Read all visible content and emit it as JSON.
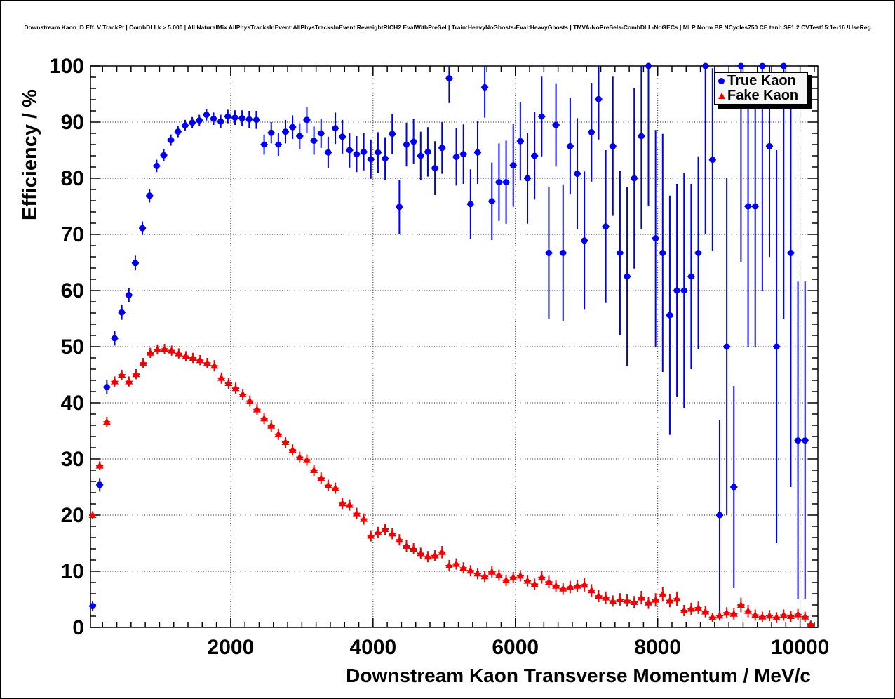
{
  "title": "Downstream Kaon ID Eff. V TrackPt | CombDLLk > 5.000 | All NaturalMix AllPhysTracksInEvent:AllPhysTracksInEvent ReweightRICH2 EvalWithPreSel | Train:HeavyNoGhosts-Eval:HeavyGhosts | TMVA-NoPreSels-CombDLL-NoGECs | MLP Norm BP NCycles750 CE tanh SF1.2 CVTest15:1e-16 !UseReg",
  "colors": {
    "true_kaon": "#0000f0",
    "fake_kaon": "#f00000",
    "axis": "#000000",
    "grid": "#000000",
    "legend_bg": "#f6f6f6",
    "canvas_bg": "#ffffff"
  },
  "legend": {
    "entries": [
      {
        "label": "True Kaon",
        "marker": "circle",
        "color": "#0000f0"
      },
      {
        "label": "Fake Kaon",
        "marker": "triangle-up",
        "color": "#f00000"
      }
    ]
  },
  "chart_data": {
    "type": "scatter",
    "title": "Downstream Kaon ID Eff. V TrackPt",
    "xlabel": "Downstream Kaon Transverse Momentum / MeV/c",
    "ylabel": "Efficiency / %",
    "xlim": [
      30,
      10250
    ],
    "ylim": [
      0,
      100
    ],
    "x_ticks": [
      2000,
      4000,
      6000,
      8000,
      10000
    ],
    "y_ticks": [
      0,
      10,
      20,
      30,
      40,
      50,
      60,
      70,
      80,
      90,
      100
    ],
    "x_minor_step": 200,
    "y_minor_step": 2,
    "grid": true,
    "bin_half_width": 50,
    "series": [
      {
        "name": "True Kaon",
        "marker": "circle",
        "color": "#0000f0",
        "point_format": [
          "pt",
          "eff",
          "err_lo_abs",
          "err_hi_abs"
        ],
        "points": [
          [
            60,
            3.8,
            3.0,
            4.6
          ],
          [
            160,
            25.4,
            24.2,
            26.6
          ],
          [
            260,
            42.8,
            41.5,
            44.1
          ],
          [
            370,
            51.5,
            50.2,
            52.8
          ],
          [
            470,
            56.1,
            54.8,
            57.4
          ],
          [
            570,
            59.2,
            57.9,
            60.5
          ],
          [
            660,
            64.9,
            63.6,
            66.2
          ],
          [
            760,
            71.1,
            69.9,
            72.3
          ],
          [
            860,
            76.9,
            75.7,
            78.1
          ],
          [
            960,
            82.2,
            81.1,
            83.3
          ],
          [
            1060,
            84.1,
            83.0,
            85.2
          ],
          [
            1160,
            86.8,
            85.8,
            87.8
          ],
          [
            1260,
            88.3,
            87.3,
            89.3
          ],
          [
            1360,
            89.4,
            88.4,
            90.4
          ],
          [
            1460,
            89.9,
            88.9,
            90.9
          ],
          [
            1560,
            90.3,
            89.3,
            91.3
          ],
          [
            1660,
            91.3,
            90.3,
            92.3
          ],
          [
            1760,
            90.6,
            89.5,
            91.7
          ],
          [
            1860,
            90.1,
            88.9,
            91.3
          ],
          [
            1960,
            91.0,
            89.8,
            92.2
          ],
          [
            2060,
            90.8,
            89.5,
            92.1
          ],
          [
            2160,
            90.7,
            89.3,
            92.1
          ],
          [
            2260,
            90.5,
            89.0,
            92.0
          ],
          [
            2360,
            90.4,
            88.8,
            92.0
          ],
          [
            2470,
            86.0,
            84.2,
            87.8
          ],
          [
            2570,
            88.1,
            86.2,
            90.0
          ],
          [
            2670,
            86.0,
            84.0,
            88.0
          ],
          [
            2770,
            88.3,
            86.2,
            90.4
          ],
          [
            2870,
            89.1,
            87.0,
            91.2
          ],
          [
            2970,
            87.5,
            85.2,
            89.8
          ],
          [
            3070,
            90.4,
            88.1,
            92.7
          ],
          [
            3170,
            86.7,
            84.2,
            89.2
          ],
          [
            3270,
            88.0,
            85.4,
            90.6
          ],
          [
            3370,
            84.6,
            81.8,
            87.4
          ],
          [
            3470,
            88.9,
            86.1,
            91.7
          ],
          [
            3570,
            87.4,
            84.4,
            90.4
          ],
          [
            3670,
            85.0,
            81.9,
            88.1
          ],
          [
            3770,
            84.3,
            81.1,
            87.5
          ],
          [
            3870,
            84.7,
            81.4,
            88.0
          ],
          [
            3970,
            83.4,
            79.9,
            86.9
          ],
          [
            4070,
            84.6,
            81.0,
            88.2
          ],
          [
            4170,
            83.5,
            79.7,
            87.3
          ],
          [
            4270,
            87.9,
            84.3,
            91.5
          ],
          [
            4370,
            74.9,
            70.1,
            79.7
          ],
          [
            4470,
            86.0,
            82.1,
            89.9
          ],
          [
            4570,
            86.5,
            82.5,
            90.5
          ],
          [
            4670,
            84.0,
            79.7,
            88.3
          ],
          [
            4770,
            84.7,
            80.3,
            89.1
          ],
          [
            4870,
            81.8,
            77.0,
            86.6
          ],
          [
            4970,
            85.4,
            80.8,
            90.0
          ],
          [
            5070,
            97.8,
            93.4,
            100
          ],
          [
            5170,
            83.8,
            78.7,
            88.9
          ],
          [
            5270,
            84.3,
            79.0,
            89.6
          ],
          [
            5370,
            75.4,
            69.2,
            81.6
          ],
          [
            5470,
            84.6,
            79.0,
            90.2
          ],
          [
            5570,
            96.2,
            90.8,
            100
          ],
          [
            5670,
            75.9,
            69.0,
            82.8
          ],
          [
            5770,
            79.3,
            72.4,
            86.2
          ],
          [
            5870,
            79.3,
            71.9,
            86.7
          ],
          [
            5970,
            82.3,
            74.9,
            89.7
          ],
          [
            6070,
            86.6,
            79.6,
            93.6
          ],
          [
            6170,
            80.0,
            71.9,
            88.1
          ],
          [
            6270,
            84.0,
            76.2,
            91.8
          ],
          [
            6370,
            91.0,
            83.9,
            98.1
          ],
          [
            6470,
            66.7,
            55.0,
            78.4
          ],
          [
            6570,
            89.5,
            82.1,
            96.9
          ],
          [
            6670,
            66.7,
            54.5,
            78.9
          ],
          [
            6770,
            85.7,
            77.1,
            94.3
          ],
          [
            6870,
            80.8,
            70.9,
            90.7
          ],
          [
            6970,
            68.9,
            56.6,
            81.2
          ],
          [
            7070,
            88.2,
            79.4,
            97.0
          ],
          [
            7170,
            94.1,
            86.9,
            100
          ],
          [
            7270,
            71.4,
            57.8,
            85.0
          ],
          [
            7370,
            85.7,
            73.3,
            98.1
          ],
          [
            7470,
            66.7,
            52.1,
            81.3
          ],
          [
            7570,
            62.5,
            46.5,
            78.5
          ],
          [
            7670,
            80.0,
            63.9,
            96.1
          ],
          [
            7770,
            87.5,
            70.9,
            100
          ],
          [
            7870,
            100,
            75.0,
            100
          ],
          [
            7970,
            69.3,
            50.0,
            88.6
          ],
          [
            8070,
            66.7,
            45.5,
            87.9
          ],
          [
            8170,
            55.6,
            34.3,
            76.9
          ],
          [
            8270,
            60.0,
            41.0,
            79.0
          ],
          [
            8370,
            60.0,
            39.0,
            81.0
          ],
          [
            8470,
            62.5,
            46.0,
            79.0
          ],
          [
            8570,
            66.7,
            49.5,
            83.9
          ],
          [
            8670,
            100,
            70.0,
            100
          ],
          [
            8770,
            83.3,
            67.0,
            99.6
          ],
          [
            8870,
            20.0,
            3.0,
            37.0
          ],
          [
            8970,
            50.0,
            20.0,
            80.0
          ],
          [
            9070,
            25.0,
            7.0,
            43.0
          ],
          [
            9170,
            100,
            65.0,
            100
          ],
          [
            9270,
            75.0,
            50.0,
            97.0
          ],
          [
            9370,
            75.0,
            50.0,
            97.0
          ],
          [
            9470,
            100,
            60.0,
            100
          ],
          [
            9570,
            85.7,
            66.0,
            100
          ],
          [
            9670,
            50.0,
            15.0,
            85.0
          ],
          [
            9770,
            100,
            55.0,
            100
          ],
          [
            9870,
            66.7,
            25.0,
            97.0
          ],
          [
            9970,
            33.3,
            5.0,
            61.6
          ],
          [
            10070,
            33.3,
            5.0,
            61.6
          ]
        ]
      },
      {
        "name": "Fake Kaon",
        "marker": "triangle-up",
        "color": "#f00000",
        "point_format": [
          "pt",
          "eff",
          "err_sym"
        ],
        "points": [
          [
            60,
            20.0,
            0.7
          ],
          [
            160,
            28.8,
            0.8
          ],
          [
            260,
            36.6,
            0.9
          ],
          [
            370,
            43.8,
            0.9
          ],
          [
            470,
            45.0,
            0.9
          ],
          [
            570,
            43.8,
            0.9
          ],
          [
            670,
            45.1,
            0.9
          ],
          [
            770,
            47.1,
            0.9
          ],
          [
            870,
            48.9,
            0.9
          ],
          [
            970,
            49.5,
            0.9
          ],
          [
            1070,
            49.6,
            0.9
          ],
          [
            1170,
            49.3,
            0.9
          ],
          [
            1270,
            48.8,
            0.9
          ],
          [
            1370,
            48.3,
            0.9
          ],
          [
            1470,
            48.0,
            0.9
          ],
          [
            1570,
            47.6,
            0.9
          ],
          [
            1670,
            47.1,
            0.9
          ],
          [
            1770,
            46.6,
            1.0
          ],
          [
            1870,
            44.4,
            1.0
          ],
          [
            1970,
            43.5,
            1.0
          ],
          [
            2070,
            42.6,
            1.0
          ],
          [
            2170,
            41.5,
            1.0
          ],
          [
            2270,
            40.3,
            1.0
          ],
          [
            2370,
            38.8,
            1.0
          ],
          [
            2470,
            37.2,
            1.0
          ],
          [
            2570,
            35.9,
            1.0
          ],
          [
            2670,
            34.4,
            1.0
          ],
          [
            2770,
            33.0,
            1.0
          ],
          [
            2870,
            31.6,
            1.0
          ],
          [
            2970,
            30.3,
            1.0
          ],
          [
            3070,
            29.8,
            1.0
          ],
          [
            3170,
            28.0,
            1.0
          ],
          [
            3270,
            26.6,
            1.0
          ],
          [
            3370,
            25.3,
            1.0
          ],
          [
            3470,
            24.8,
            1.0
          ],
          [
            3570,
            22.1,
            1.0
          ],
          [
            3670,
            21.8,
            1.0
          ],
          [
            3770,
            20.3,
            1.0
          ],
          [
            3870,
            19.3,
            1.0
          ],
          [
            3970,
            16.3,
            1.0
          ],
          [
            4070,
            16.9,
            1.0
          ],
          [
            4170,
            17.5,
            1.0
          ],
          [
            4270,
            16.7,
            1.0
          ],
          [
            4370,
            15.6,
            1.0
          ],
          [
            4470,
            14.5,
            1.0
          ],
          [
            4570,
            14.0,
            1.0
          ],
          [
            4670,
            13.2,
            1.0
          ],
          [
            4770,
            12.6,
            1.0
          ],
          [
            4870,
            12.8,
            1.0
          ],
          [
            4970,
            13.4,
            1.1
          ],
          [
            5070,
            11.0,
            1.0
          ],
          [
            5170,
            11.3,
            1.0
          ],
          [
            5270,
            10.6,
            1.0
          ],
          [
            5370,
            10.1,
            1.0
          ],
          [
            5470,
            9.6,
            1.0
          ],
          [
            5570,
            9.1,
            1.0
          ],
          [
            5670,
            9.9,
            1.0
          ],
          [
            5770,
            9.3,
            1.0
          ],
          [
            5870,
            8.4,
            1.0
          ],
          [
            5970,
            8.9,
            1.0
          ],
          [
            6070,
            9.2,
            1.0
          ],
          [
            6170,
            8.3,
            1.0
          ],
          [
            6270,
            7.7,
            1.0
          ],
          [
            6370,
            8.9,
            1.1
          ],
          [
            6470,
            8.1,
            1.1
          ],
          [
            6570,
            7.4,
            1.1
          ],
          [
            6670,
            6.9,
            1.1
          ],
          [
            6770,
            7.2,
            1.1
          ],
          [
            6870,
            7.4,
            1.1
          ],
          [
            6970,
            7.6,
            1.2
          ],
          [
            7070,
            6.6,
            1.1
          ],
          [
            7170,
            5.6,
            1.1
          ],
          [
            7270,
            5.3,
            1.1
          ],
          [
            7370,
            4.7,
            1.0
          ],
          [
            7470,
            5.0,
            1.1
          ],
          [
            7570,
            4.8,
            1.1
          ],
          [
            7670,
            4.5,
            1.1
          ],
          [
            7770,
            5.3,
            1.2
          ],
          [
            7870,
            4.4,
            1.1
          ],
          [
            7970,
            4.9,
            1.2
          ],
          [
            8070,
            5.9,
            1.3
          ],
          [
            8170,
            4.8,
            1.2
          ],
          [
            8270,
            5.1,
            1.3
          ],
          [
            8370,
            3.0,
            1.0
          ],
          [
            8470,
            3.3,
            1.1
          ],
          [
            8570,
            3.5,
            1.1
          ],
          [
            8670,
            2.8,
            1.0
          ],
          [
            8770,
            1.8,
            0.8
          ],
          [
            8870,
            2.1,
            0.9
          ],
          [
            8970,
            2.6,
            1.0
          ],
          [
            9070,
            2.4,
            1.0
          ],
          [
            9170,
            4.0,
            1.3
          ],
          [
            9270,
            2.9,
            1.1
          ],
          [
            9370,
            2.2,
            1.0
          ],
          [
            9470,
            1.9,
            0.9
          ],
          [
            9570,
            2.1,
            1.0
          ],
          [
            9670,
            1.8,
            0.9
          ],
          [
            9770,
            2.2,
            1.0
          ],
          [
            9870,
            2.0,
            1.0
          ],
          [
            9970,
            2.3,
            1.0
          ],
          [
            10070,
            1.9,
            0.9
          ],
          [
            10150,
            0.6,
            0.6
          ]
        ]
      }
    ]
  }
}
